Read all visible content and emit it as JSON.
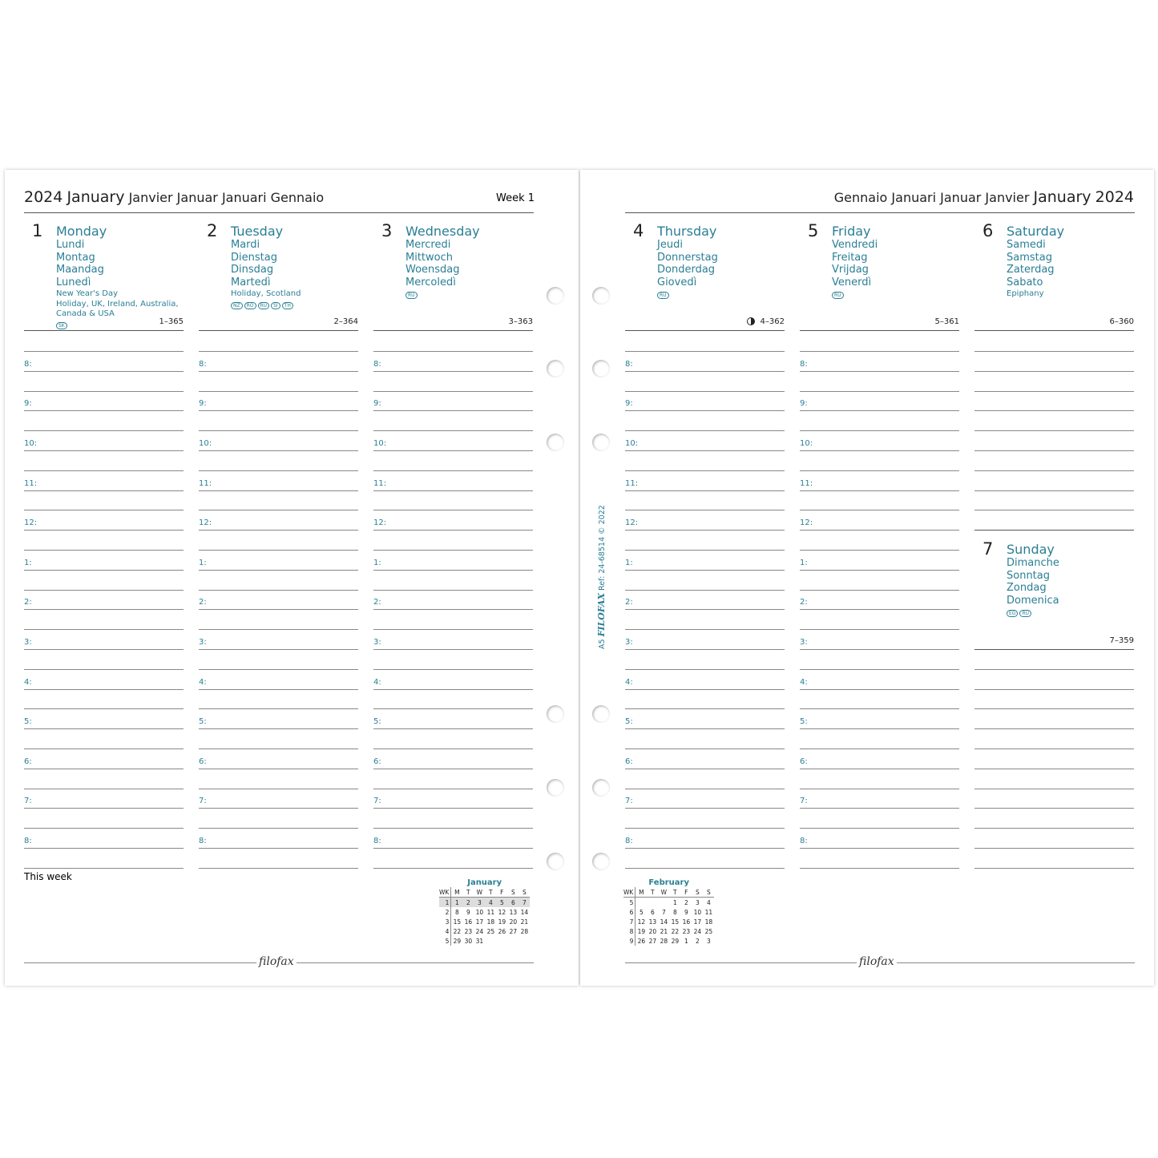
{
  "left_header": {
    "year": "2024",
    "month": "January",
    "translations": "Janvier Januar Januari Gennaio",
    "week": "Week 1"
  },
  "right_header": {
    "translations": "Gennaio Januari Januar Janvier",
    "month": "January",
    "year": "2024"
  },
  "hours": [
    "8:",
    "9:",
    "10:",
    "11:",
    "12:",
    "1:",
    "2:",
    "3:",
    "4:",
    "5:",
    "6:",
    "7:",
    "8:"
  ],
  "days": [
    {
      "num": "1",
      "name": "Monday",
      "trans": [
        "Lundi",
        "Montag",
        "Maandag",
        "Lunedì"
      ],
      "notes": [
        "New Year's Day",
        "Holiday, UK, Ireland, Australia,",
        "Canada & USA"
      ],
      "badges": [
        "SK"
      ],
      "count": "1–365"
    },
    {
      "num": "2",
      "name": "Tuesday",
      "trans": [
        "Mardi",
        "Dienstag",
        "Dinsdag",
        "Martedì"
      ],
      "notes": [
        "Holiday, Scotland"
      ],
      "badges": [
        "NZ",
        "RO",
        "RU",
        "SI",
        "TH"
      ],
      "count": "2–364"
    },
    {
      "num": "3",
      "name": "Wednesday",
      "trans": [
        "Mercredi",
        "Mittwoch",
        "Woensdag",
        "Mercoledì"
      ],
      "notes": [],
      "badges": [
        "RU"
      ],
      "count": "3–363"
    },
    {
      "num": "4",
      "name": "Thursday",
      "trans": [
        "Jeudi",
        "Donnerstag",
        "Donderdag",
        "Giovedì"
      ],
      "notes": [],
      "badges": [
        "RU"
      ],
      "count": "4–362",
      "moon": "first-quarter-moon-icon"
    },
    {
      "num": "5",
      "name": "Friday",
      "trans": [
        "Vendredi",
        "Freitag",
        "Vrijdag",
        "Venerdì"
      ],
      "notes": [],
      "badges": [
        "RU"
      ],
      "count": "5–361"
    },
    {
      "num": "6",
      "name": "Saturday",
      "trans": [
        "Samedi",
        "Samstag",
        "Zaterdag",
        "Sabato"
      ],
      "notes": [
        "Epiphany"
      ],
      "badges": [],
      "count": "6–360"
    },
    {
      "num": "7",
      "name": "Sunday",
      "trans": [
        "Dimanche",
        "Sonntag",
        "Zondag",
        "Domenica"
      ],
      "notes": [],
      "badges": [
        "EG",
        "RU"
      ],
      "count": "7–359"
    }
  ],
  "this_week": "This week",
  "spine": {
    "size": "A5",
    "brand": "FILOFAX",
    "ref": "Ref: 24-68514  © 2022"
  },
  "logo": "filofax",
  "mini_calendars": [
    {
      "title": "January",
      "head": [
        "WK",
        "M",
        "T",
        "W",
        "T",
        "F",
        "S",
        "S"
      ],
      "rows": [
        [
          "1",
          "1",
          "2",
          "3",
          "4",
          "5",
          "6",
          "7"
        ],
        [
          "2",
          "8",
          "9",
          "10",
          "11",
          "12",
          "13",
          "14"
        ],
        [
          "3",
          "15",
          "16",
          "17",
          "18",
          "19",
          "20",
          "21"
        ],
        [
          "4",
          "22",
          "23",
          "24",
          "25",
          "26",
          "27",
          "28"
        ],
        [
          "5",
          "29",
          "30",
          "31",
          "",
          "",
          "",
          ""
        ]
      ],
      "current_row": 0
    },
    {
      "title": "February",
      "head": [
        "WK",
        "M",
        "T",
        "W",
        "T",
        "F",
        "S",
        "S"
      ],
      "rows": [
        [
          "5",
          "",
          "",
          "",
          "1",
          "2",
          "3",
          "4"
        ],
        [
          "6",
          "5",
          "6",
          "7",
          "8",
          "9",
          "10",
          "11"
        ],
        [
          "7",
          "12",
          "13",
          "14",
          "15",
          "16",
          "17",
          "18"
        ],
        [
          "8",
          "19",
          "20",
          "21",
          "22",
          "23",
          "24",
          "25"
        ],
        [
          "9",
          "26",
          "27",
          "28",
          "29",
          "1",
          "2",
          "3"
        ]
      ]
    }
  ],
  "colors": {
    "accent": "#2a7f95",
    "text": "#222222"
  }
}
